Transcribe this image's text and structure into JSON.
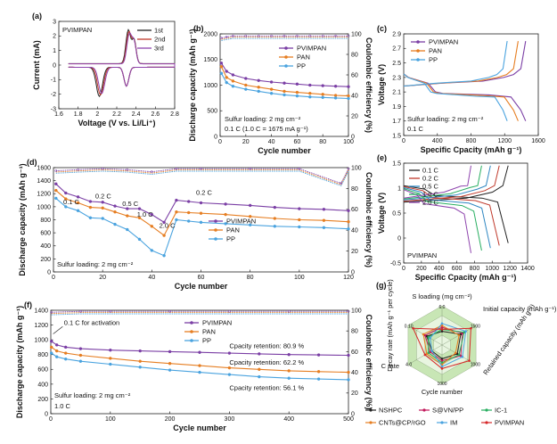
{
  "chart_data": [
    {
      "id": "a",
      "type": "line",
      "panel_label": "(a)",
      "xlabel": "Voltage (V vs. Li/Li⁺)",
      "ylabel": "Current (mA)",
      "xlim": [
        1.6,
        2.8
      ],
      "ylim": [
        -3,
        3
      ],
      "xticks": [
        1.6,
        1.8,
        2.0,
        2.2,
        2.4,
        2.6,
        2.8
      ],
      "yticks": [
        -3,
        -2,
        -1,
        0,
        1,
        2,
        3
      ],
      "annotations": [
        {
          "text": "PVIMPAN",
          "pos": "top-left"
        }
      ],
      "legend_position": "top-right",
      "series": [
        {
          "name": "1st",
          "color": "#222222"
        },
        {
          "name": "2nd",
          "color": "#c0392b"
        },
        {
          "name": "3rd",
          "color": "#8e44ad"
        }
      ]
    },
    {
      "id": "b",
      "type": "scatter",
      "panel_label": "(b)",
      "xlabel": "Cycle number",
      "ylabel": "Discharge capacity (mAh g⁻¹)",
      "y2label": "Coulombic efficiency (%)",
      "xlim": [
        0,
        100
      ],
      "ylim": [
        0,
        2000
      ],
      "y2lim": [
        0,
        100
      ],
      "xticks": [
        0,
        20,
        40,
        60,
        80,
        100
      ],
      "yticks": [
        0,
        500,
        1000,
        1500,
        2000
      ],
      "y2ticks": [
        0,
        20,
        40,
        60,
        80,
        100
      ],
      "annotations": [
        {
          "text": "Sulfur loading: 2 mg cm⁻²"
        },
        {
          "text": "0.1 C (1.0 C = 1675 mA g⁻¹)"
        }
      ],
      "legend_position": "top-right",
      "series": [
        {
          "name": "PVIMPAN",
          "color": "#7b3fa5",
          "x": [
            1,
            5,
            10,
            20,
            30,
            40,
            50,
            60,
            70,
            80,
            90,
            100
          ],
          "y": [
            1430,
            1270,
            1200,
            1130,
            1090,
            1060,
            1040,
            1020,
            1000,
            990,
            980,
            970
          ]
        },
        {
          "name": "PAN",
          "color": "#e67e22",
          "x": [
            1,
            5,
            10,
            20,
            30,
            40,
            50,
            60,
            70,
            80,
            90,
            100
          ],
          "y": [
            1360,
            1150,
            1080,
            1000,
            960,
            920,
            880,
            860,
            840,
            820,
            800,
            790
          ]
        },
        {
          "name": "PP",
          "color": "#4aa3df",
          "x": [
            1,
            5,
            10,
            20,
            30,
            40,
            50,
            60,
            70,
            80,
            90,
            100
          ],
          "y": [
            1230,
            1050,
            980,
            920,
            880,
            840,
            810,
            790,
            770,
            760,
            750,
            740
          ]
        }
      ],
      "efficiency": {
        "x": [
          1,
          5,
          10,
          20,
          30,
          40,
          50,
          60,
          70,
          80,
          90,
          100
        ],
        "y": [
          96,
          97,
          98,
          98,
          98,
          98,
          98,
          98,
          98,
          98,
          98,
          98
        ]
      }
    },
    {
      "id": "c",
      "type": "line",
      "panel_label": "(c)",
      "xlabel": "Specific Cpacity (mAh g⁻¹)",
      "ylabel": "Voltage (V)",
      "xlim": [
        0,
        1600
      ],
      "ylim": [
        1.5,
        2.9
      ],
      "xticks": [
        0,
        400,
        800,
        1200,
        1600
      ],
      "yticks": [
        1.5,
        1.7,
        1.9,
        2.1,
        2.3,
        2.5,
        2.7,
        2.9
      ],
      "annotations": [
        {
          "text": "Sulfur loading: 2 mg cm⁻²"
        },
        {
          "text": "0.1 C"
        }
      ],
      "legend_position": "top-left",
      "series": [
        {
          "name": "PVIMPAN",
          "color": "#7b3fa5",
          "cap": 1450
        },
        {
          "name": "PAN",
          "color": "#e67e22",
          "cap": 1360
        },
        {
          "name": "PP",
          "color": "#4aa3df",
          "cap": 1230
        }
      ]
    },
    {
      "id": "d",
      "type": "scatter",
      "panel_label": "(d)",
      "xlabel": "Cycle number",
      "ylabel": "Discharge capacity (mAh g⁻¹)",
      "y2label": "Coulombic efficiency (%)",
      "xlim": [
        0,
        120
      ],
      "ylim": [
        0,
        1600
      ],
      "y2lim": [
        0,
        100
      ],
      "xticks": [
        0,
        20,
        40,
        60,
        80,
        100,
        120
      ],
      "yticks": [
        0,
        200,
        400,
        600,
        800,
        1000,
        1200,
        1400,
        1600
      ],
      "y2ticks": [
        0,
        20,
        40,
        60,
        80,
        100
      ],
      "annotations": [
        {
          "text": "0.1 C"
        },
        {
          "text": "0.2 C"
        },
        {
          "text": "0.5 C"
        },
        {
          "text": "1.0 C"
        },
        {
          "text": "2.0 C"
        },
        {
          "text": "0.2 C"
        },
        {
          "text": "Sulfur loading: 2 mg cm⁻²"
        }
      ],
      "legend_position": "center-right",
      "series": [
        {
          "name": "PVIMPAN",
          "color": "#7b3fa5",
          "x": [
            1,
            5,
            10,
            15,
            20,
            25,
            30,
            35,
            40,
            45,
            50,
            55,
            60,
            70,
            80,
            90,
            100,
            110,
            120
          ],
          "y": [
            1350,
            1210,
            1150,
            1080,
            1070,
            1010,
            970,
            970,
            880,
            760,
            1100,
            1080,
            1060,
            1040,
            1020,
            990,
            970,
            960,
            940
          ]
        },
        {
          "name": "PAN",
          "color": "#e67e22",
          "x": [
            1,
            5,
            10,
            15,
            20,
            25,
            30,
            35,
            40,
            45,
            50,
            55,
            60,
            70,
            80,
            90,
            100,
            110,
            120
          ],
          "y": [
            1250,
            1120,
            1060,
            990,
            980,
            920,
            860,
            830,
            700,
            560,
            920,
            910,
            900,
            880,
            850,
            820,
            800,
            790,
            770
          ]
        },
        {
          "name": "PP",
          "color": "#4aa3df",
          "x": [
            1,
            5,
            10,
            15,
            20,
            25,
            30,
            35,
            40,
            45,
            50,
            55,
            60,
            70,
            80,
            90,
            100,
            110,
            120
          ],
          "y": [
            1130,
            1000,
            940,
            830,
            820,
            730,
            650,
            500,
            330,
            250,
            800,
            780,
            760,
            740,
            720,
            700,
            690,
            680,
            660
          ]
        }
      ],
      "efficiency": {
        "x": [
          1,
          10,
          20,
          30,
          40,
          50,
          60,
          80,
          100,
          117,
          120
        ],
        "y": [
          97,
          98,
          99,
          98,
          96,
          99,
          99,
          99,
          99,
          85,
          99
        ]
      }
    },
    {
      "id": "e",
      "type": "line",
      "panel_label": "(e)",
      "xlabel": "Specific Cpacity (mAh g⁻¹)",
      "ylabel": "Voltage (V)",
      "xlim": [
        0,
        1400
      ],
      "ylim": [
        -0.5,
        1.5
      ],
      "xticks": [
        0,
        200,
        400,
        600,
        800,
        1000,
        1200,
        1400
      ],
      "yticks": [
        -0.5,
        0.0,
        0.5,
        1.0,
        1.5
      ],
      "annotations": [
        {
          "text": "PVIMPAN"
        }
      ],
      "legend_position": "top-left",
      "series": [
        {
          "name": "0.1 C",
          "color": "#222222",
          "cap": 1180
        },
        {
          "name": "0.2 C",
          "color": "#c0392b",
          "cap": 1080
        },
        {
          "name": "0.5 C",
          "color": "#2e86c1",
          "cap": 980
        },
        {
          "name": "1.0 C",
          "color": "#27ae60",
          "cap": 880
        },
        {
          "name": "2.0 C",
          "color": "#8e44ad",
          "cap": 760
        }
      ]
    },
    {
      "id": "f",
      "type": "scatter",
      "panel_label": "(f)",
      "xlabel": "Cycle number",
      "ylabel": "Discharge capacity (mAh g⁻¹)",
      "y2label": "Coulombic efficiency (%)",
      "xlim": [
        0,
        500
      ],
      "ylim": [
        0,
        1400
      ],
      "y2lim": [
        0,
        100
      ],
      "xticks": [
        0,
        100,
        200,
        300,
        400,
        500
      ],
      "yticks": [
        0,
        200,
        400,
        600,
        800,
        1000,
        1200,
        1400
      ],
      "y2ticks": [
        0,
        20,
        40,
        60,
        80,
        100
      ],
      "annotations": [
        {
          "text": "0.1 C for activation"
        },
        {
          "text": "Cpacity retention: 80.9 %"
        },
        {
          "text": "Cpacity retention: 62.2 %"
        },
        {
          "text": "Cpacity retention: 56.1 %"
        },
        {
          "text": "Sulfur loading: 2 mg cm⁻²"
        },
        {
          "text": "1.0 C"
        }
      ],
      "legend_position": "top-right",
      "series": [
        {
          "name": "PVIMPAN",
          "color": "#7b3fa5",
          "x": [
            1,
            10,
            25,
            50,
            100,
            150,
            200,
            250,
            300,
            350,
            400,
            450,
            500
          ],
          "y": [
            980,
            930,
            900,
            880,
            860,
            850,
            840,
            830,
            820,
            810,
            800,
            795,
            790
          ]
        },
        {
          "name": "PAN",
          "color": "#e67e22",
          "x": [
            1,
            10,
            25,
            50,
            100,
            150,
            200,
            250,
            300,
            350,
            400,
            450,
            500
          ],
          "y": [
            900,
            850,
            820,
            790,
            750,
            710,
            680,
            650,
            620,
            600,
            580,
            570,
            560
          ]
        },
        {
          "name": "PP",
          "color": "#4aa3df",
          "x": [
            1,
            10,
            25,
            50,
            100,
            150,
            200,
            250,
            300,
            350,
            400,
            450,
            500
          ],
          "y": [
            820,
            770,
            740,
            710,
            670,
            630,
            590,
            560,
            530,
            500,
            480,
            470,
            460
          ]
        }
      ],
      "efficiency": {
        "x": [
          1,
          50,
          100,
          200,
          300,
          400,
          500
        ],
        "y": [
          98,
          99,
          99,
          99,
          99,
          99,
          99
        ]
      }
    },
    {
      "id": "g",
      "type": "radar",
      "panel_label": "(g)",
      "axes": [
        {
          "label": "S loading (mg cm⁻²)",
          "max_label": "6.0"
        },
        {
          "label": "Initial capacity (mAh g⁻¹)",
          "max_label": "1500"
        },
        {
          "label": "Retained capacity (mAh g⁻¹)",
          "max_label": "1000"
        },
        {
          "label": "Cycle number",
          "max_label": "1000"
        },
        {
          "label": "C rate",
          "max_label": "4.0"
        },
        {
          "label": "Decay rate (mAh g⁻¹ per cycle)",
          "max_label": "0.10"
        }
      ],
      "series": [
        {
          "name": "NSHPC",
          "color": "#222222",
          "values": [
            0.35,
            0.55,
            0.45,
            0.35,
            0.3,
            0.45
          ]
        },
        {
          "name": "S@VN/PP",
          "color": "#c2185b",
          "values": [
            0.45,
            0.6,
            0.55,
            0.4,
            0.35,
            0.5
          ]
        },
        {
          "name": "IC-1",
          "color": "#27ae60",
          "values": [
            0.4,
            0.65,
            0.5,
            0.45,
            0.4,
            0.4
          ]
        },
        {
          "name": "CNTs@CP/rGO",
          "color": "#e67e22",
          "values": [
            0.5,
            0.5,
            0.4,
            0.5,
            0.45,
            0.55
          ]
        },
        {
          "name": "IM",
          "color": "#4aa3df",
          "values": [
            0.55,
            0.7,
            0.6,
            0.55,
            0.3,
            0.35
          ]
        },
        {
          "name": "PVIMPAN",
          "color": "#d62728",
          "values": [
            0.4,
            0.85,
            0.8,
            0.6,
            0.5,
            0.85
          ]
        }
      ]
    }
  ]
}
